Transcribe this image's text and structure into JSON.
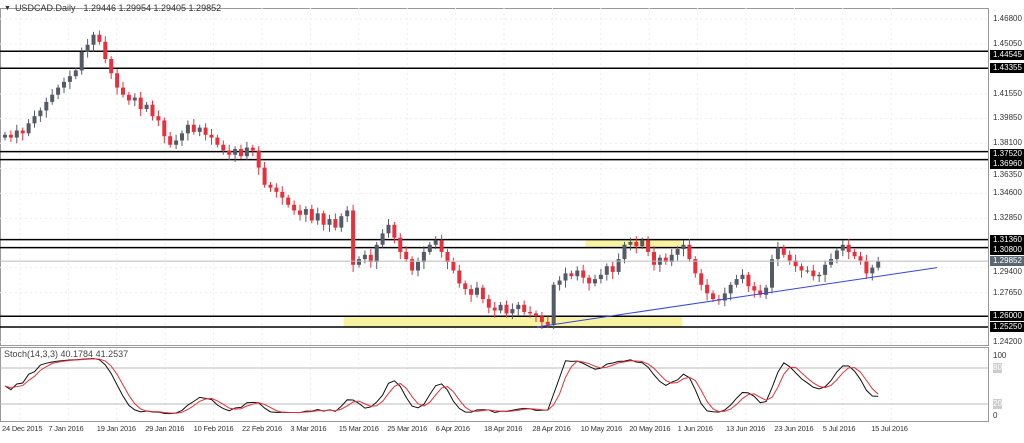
{
  "header": {
    "symbol": "USDCAD.Daily",
    "ohlc": "1.29446 1.29954 1.29405 1.29852",
    "menu_icon": "triangle-down-icon"
  },
  "indicator": {
    "label": "Stoch(14,3,3) 40.1784 41.2537",
    "levels": [
      "100",
      "80",
      "20",
      "0"
    ]
  },
  "colors": {
    "bull": "#555b66",
    "bear": "#e8303c",
    "trend": "#3344ee",
    "zone": "#f7f3a0",
    "stoch_k": "#111111",
    "stoch_d": "#e8303c"
  },
  "chart_data": {
    "type": "candlestick",
    "symbol": "USDCAD",
    "timeframe": "Daily",
    "ylim": [
      1.242,
      1.468
    ],
    "y_ticks": [
      "1.46800",
      "1.45050",
      "1.41550",
      "1.39850",
      "1.38100",
      "1.36350",
      "1.34600",
      "1.32850",
      "1.29400",
      "1.27650",
      "1.24200"
    ],
    "x_labels": [
      "24 Dec 2015",
      "7 Jan 2016",
      "19 Jan 2016",
      "29 Jan 2016",
      "10 Feb 2016",
      "22 Feb 2016",
      "3 Mar 2016",
      "15 Mar 2016",
      "25 Mar 2016",
      "6 Apr 2016",
      "18 Apr 2016",
      "28 Apr 2016",
      "10 May 2016",
      "20 May 2016",
      "1 Jun 2016",
      "13 Jun 2016",
      "23 Jun 2016",
      "5 Jul 2016",
      "15 Jul 2016"
    ],
    "closes": [
      1.387,
      1.385,
      1.39,
      1.388,
      1.395,
      1.4,
      1.404,
      1.41,
      1.415,
      1.42,
      1.424,
      1.428,
      1.432,
      1.445,
      1.45,
      1.457,
      1.452,
      1.44,
      1.43,
      1.42,
      1.415,
      1.411,
      1.413,
      1.405,
      1.408,
      1.4,
      1.397,
      1.386,
      1.38,
      1.383,
      1.388,
      1.394,
      1.389,
      1.392,
      1.387,
      1.385,
      1.38,
      1.376,
      1.373,
      1.377,
      1.372,
      1.378,
      1.376,
      1.364,
      1.352,
      1.35,
      1.347,
      1.343,
      1.338,
      1.334,
      1.331,
      1.335,
      1.327,
      1.332,
      1.324,
      1.328,
      1.322,
      1.33,
      1.334,
      1.296,
      1.3,
      1.303,
      1.298,
      1.31,
      1.318,
      1.324,
      1.315,
      1.305,
      1.3,
      1.292,
      1.298,
      1.305,
      1.31,
      1.313,
      1.305,
      1.298,
      1.292,
      1.283,
      1.279,
      1.275,
      1.28,
      1.272,
      1.266,
      1.264,
      1.268,
      1.262,
      1.265,
      1.268,
      1.263,
      1.262,
      1.26,
      1.256,
      1.254,
      1.282,
      1.285,
      1.29,
      1.288,
      1.292,
      1.287,
      1.283,
      1.286,
      1.289,
      1.295,
      1.291,
      1.3,
      1.31,
      1.312,
      1.309,
      1.313,
      1.305,
      1.296,
      1.301,
      1.298,
      1.303,
      1.307,
      1.31,
      1.3,
      1.29,
      1.282,
      1.276,
      1.272,
      1.271,
      1.276,
      1.282,
      1.286,
      1.289,
      1.281,
      1.278,
      1.275,
      1.28,
      1.3,
      1.308,
      1.303,
      1.299,
      1.295,
      1.292,
      1.292,
      1.288,
      1.289,
      1.296,
      1.3,
      1.306,
      1.31,
      1.305,
      1.302,
      1.299,
      1.29,
      1.294,
      1.29852
    ],
    "horizontal_levels": [
      "1.44545",
      "1.43355",
      "1.37520",
      "1.36960",
      "1.31360",
      "1.30800",
      "1.26000",
      "1.25250"
    ],
    "current_price": "1.29852",
    "zones": [
      {
        "from": "1.30800",
        "to": "1.31360",
        "start": "10 May 2016",
        "end": "1 Jun 2016"
      },
      {
        "from": "1.25250",
        "to": "1.26000",
        "start": "15 Mar 2016",
        "end": "1 Jun 2016"
      }
    ],
    "trendline": {
      "start": {
        "date": "28 Apr 2016",
        "price": 1.2525
      },
      "end_price": 1.294
    }
  }
}
